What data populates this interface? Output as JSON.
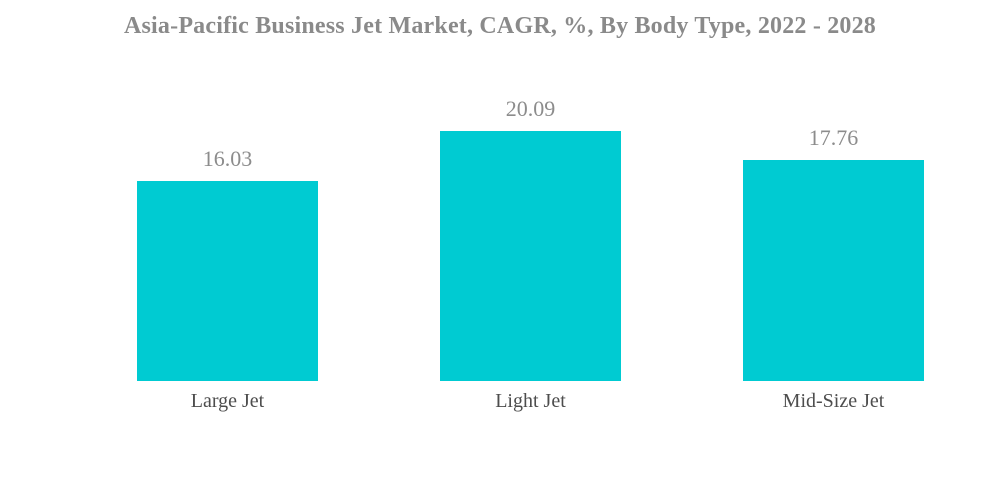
{
  "chart_data": {
    "type": "bar",
    "title": "Asia-Pacific Business Jet Market, CAGR, %, By Body Type, 2022 - 2028",
    "categories": [
      "Large Jet",
      "Light Jet",
      "Mid-Size Jet"
    ],
    "values": [
      16.03,
      20.09,
      17.76
    ],
    "value_labels": [
      "16.03",
      "20.09",
      "17.76"
    ],
    "xlabel": "",
    "ylabel": "",
    "ylim": [
      0,
      20.09
    ],
    "grid": false,
    "legend": false,
    "axes_visible": false,
    "colors": {
      "bar": "#00CBD2",
      "title": "#8A8A8A",
      "value_label": "#8C8C8C",
      "category_label": "#4D4D4D",
      "background": "#FFFFFF"
    }
  }
}
